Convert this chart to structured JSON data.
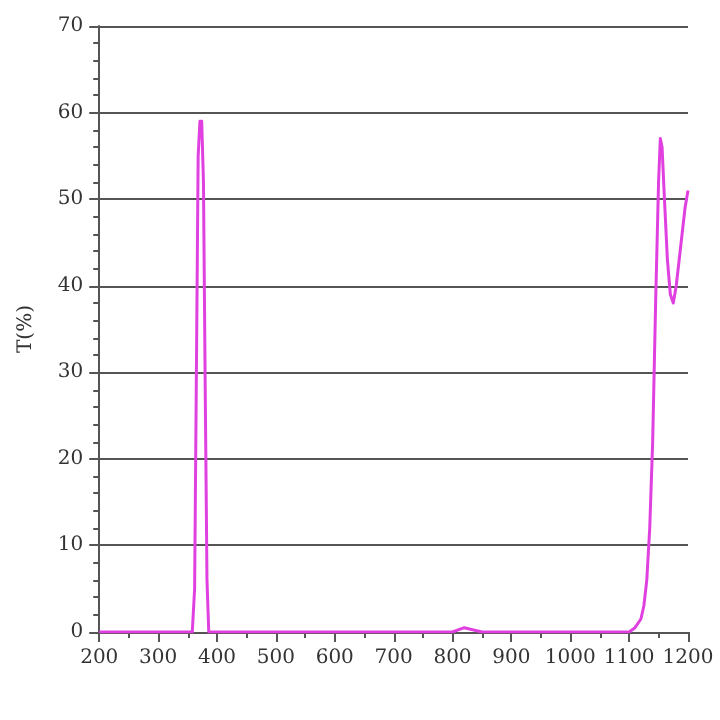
{
  "chart_data": {
    "type": "line",
    "ylabel": "T(%)",
    "xlim": [
      200,
      1200
    ],
    "xticks": [
      200,
      300,
      400,
      500,
      600,
      700,
      800,
      900,
      1000,
      1100,
      1200
    ],
    "ylim": [
      0,
      70
    ],
    "yticks": [
      0,
      10,
      20,
      30,
      40,
      50,
      60,
      70
    ],
    "grid": "y",
    "marker": "none",
    "line_style": "solid",
    "series": [
      {
        "color": "#e040e0",
        "x": [
          200,
          350,
          358,
          362,
          365,
          368,
          371,
          374,
          377,
          380,
          383,
          386,
          390,
          500,
          700,
          800,
          820,
          850,
          1000,
          1100,
          1110,
          1120,
          1125,
          1130,
          1135,
          1140,
          1145,
          1150,
          1153,
          1156,
          1160,
          1165,
          1170,
          1175,
          1180,
          1185,
          1190,
          1195,
          1200
        ],
        "values": [
          0,
          0,
          0,
          5,
          30,
          55,
          59,
          59,
          52,
          28,
          6,
          0,
          0,
          0,
          0,
          0,
          0.5,
          0,
          0,
          0,
          0.5,
          1.5,
          3,
          6,
          12,
          22,
          38,
          52,
          57,
          56,
          50,
          43,
          39,
          38,
          40,
          43,
          46,
          49,
          51
        ]
      }
    ]
  }
}
